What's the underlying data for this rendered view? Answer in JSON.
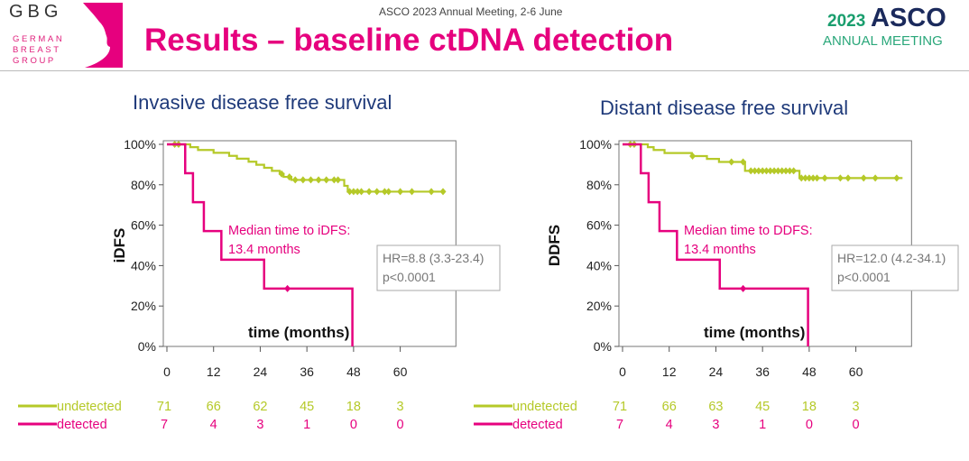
{
  "header": {
    "logo_text": "GBG",
    "logo_sub": [
      "GERMAN",
      "BREAST",
      "GROUP"
    ],
    "conference": "ASCO 2023 Annual Meeting, 2-6 June",
    "title": "Results – baseline ctDNA detection",
    "asco_year": "2023",
    "asco_word": "ASCO",
    "asco_sub": "ANNUAL MEETING"
  },
  "colors": {
    "undetected": "#b5c928",
    "detected": "#e6007e",
    "title": "#e6007e",
    "chart_title": "#1f3a7a"
  },
  "chart_data": [
    {
      "type": "line",
      "subtype": "kaplan-meier",
      "title": "Invasive disease free survival",
      "xlabel": "time (months)",
      "ylabel": "iDFS",
      "xticks": [
        "0",
        "12",
        "24",
        "36",
        "48",
        "60"
      ],
      "yticks": [
        "0%",
        "20%",
        "40%",
        "60%",
        "80%",
        "100%"
      ],
      "xlim": [
        0,
        72
      ],
      "ylim": [
        0,
        100
      ],
      "annotation": [
        "Median time to iDFS:",
        "13.4 months"
      ],
      "stats": [
        "HR=8.8 (3.3-23.4)",
        "p<0.0001"
      ],
      "series": [
        {
          "name": "undetected",
          "steps": [
            [
              0,
              100
            ],
            [
              6,
              98.6
            ],
            [
              8,
              97.2
            ],
            [
              12,
              95.8
            ],
            [
              16,
              94.3
            ],
            [
              18,
              92.9
            ],
            [
              21,
              91.4
            ],
            [
              23,
              89.9
            ],
            [
              25,
              88.4
            ],
            [
              27,
              86.9
            ],
            [
              29,
              85.4
            ],
            [
              30,
              83.9
            ],
            [
              32,
              82.4
            ],
            [
              45.6,
              79.5
            ],
            [
              46.5,
              76.6
            ]
          ],
          "end": 71.5,
          "censors": [
            2,
            3,
            29.5,
            31.5,
            33,
            35,
            37,
            39,
            41,
            43,
            44,
            47,
            48,
            49,
            50,
            52,
            54,
            56,
            57,
            60,
            63,
            68,
            71
          ],
          "at_risk": [
            "71",
            "66",
            "62",
            "45",
            "18",
            "3"
          ]
        },
        {
          "name": "detected",
          "steps": [
            [
              0,
              100
            ],
            [
              4.7,
              85.7
            ],
            [
              6.7,
              71.4
            ],
            [
              9.5,
              57.1
            ],
            [
              14,
              42.9
            ],
            [
              25,
              28.6
            ],
            [
              47.7,
              0
            ]
          ],
          "end": 47.7,
          "censors": [
            31
          ],
          "at_risk": [
            "7",
            "4",
            "3",
            "1",
            "0",
            "0"
          ]
        }
      ]
    },
    {
      "type": "line",
      "subtype": "kaplan-meier",
      "title": "Distant disease free survival",
      "xlabel": "time (months)",
      "ylabel": "DDFS",
      "xticks": [
        "0",
        "12",
        "24",
        "36",
        "48",
        "60"
      ],
      "yticks": [
        "0%",
        "20%",
        "40%",
        "60%",
        "80%",
        "100%"
      ],
      "xlim": [
        0,
        72
      ],
      "ylim": [
        0,
        100
      ],
      "annotation": [
        "Median time to DDFS:",
        "13.4 months"
      ],
      "stats": [
        "HR=12.0 (4.2-34.1)",
        "p<0.0001"
      ],
      "series": [
        {
          "name": "undetected",
          "steps": [
            [
              0,
              100
            ],
            [
              6.5,
              98.6
            ],
            [
              8,
              97.2
            ],
            [
              10.8,
              95.7
            ],
            [
              17.8,
              94.2
            ],
            [
              21.7,
              92.8
            ],
            [
              24.8,
              91.3
            ],
            [
              31.5,
              86.9
            ],
            [
              45.5,
              83.3
            ]
          ],
          "end": 72,
          "censors": [
            2,
            3,
            18,
            28,
            31,
            33,
            34,
            35,
            36,
            37,
            38,
            39,
            40,
            41,
            42,
            43,
            44,
            46,
            47,
            48,
            49,
            50,
            52,
            56,
            58,
            62,
            65,
            70.5
          ],
          "at_risk": [
            "71",
            "66",
            "63",
            "45",
            "18",
            "3"
          ]
        },
        {
          "name": "detected",
          "steps": [
            [
              0,
              100
            ],
            [
              4.7,
              85.7
            ],
            [
              6.7,
              71.4
            ],
            [
              9.5,
              57.1
            ],
            [
              14,
              42.9
            ],
            [
              25,
              28.6
            ],
            [
              47.7,
              0
            ]
          ],
          "end": 47.7,
          "censors": [
            31
          ],
          "at_risk": [
            "7",
            "4",
            "3",
            "1",
            "0",
            "0"
          ]
        }
      ]
    }
  ]
}
